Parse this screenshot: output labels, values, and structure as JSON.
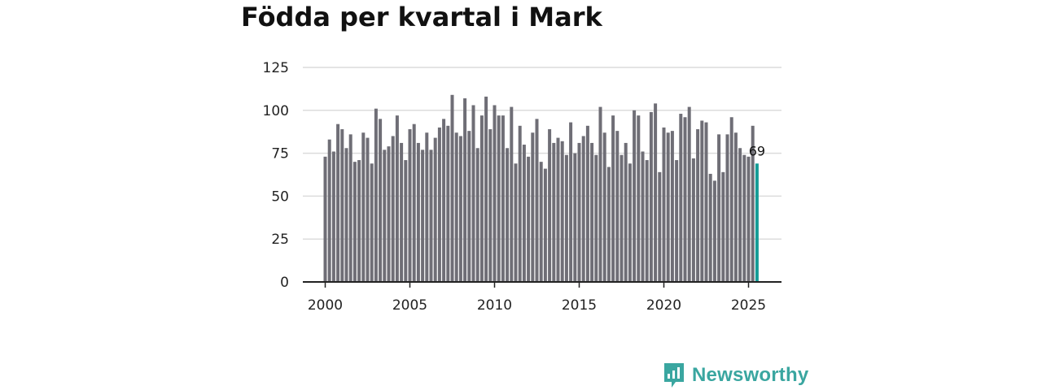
{
  "colors": {
    "bar": "#6f6e76",
    "highlight": "#149c96",
    "grid": "#dcdcdc",
    "axis": "#222222",
    "brand": "#3aa6a0"
  },
  "brand": {
    "name": "Newsworthy",
    "icon": "newsworthy-logo-icon"
  },
  "chart_data": {
    "type": "bar",
    "title": "Födda per kvartal i Mark",
    "xlabel": "",
    "ylabel": "",
    "yticks": [
      0,
      25,
      50,
      75,
      100,
      125
    ],
    "ylim": [
      0,
      125
    ],
    "xticks": [
      "2000",
      "2005",
      "2010",
      "2015",
      "2020",
      "2025"
    ],
    "grid": true,
    "categories": [
      "2000 K1",
      "2000 K2",
      "2000 K3",
      "2000 K4",
      "2001 K1",
      "2001 K2",
      "2001 K3",
      "2001 K4",
      "2002 K1",
      "2002 K2",
      "2002 K3",
      "2002 K4",
      "2003 K1",
      "2003 K2",
      "2003 K3",
      "2003 K4",
      "2004 K1",
      "2004 K2",
      "2004 K3",
      "2004 K4",
      "2005 K1",
      "2005 K2",
      "2005 K3",
      "2005 K4",
      "2006 K1",
      "2006 K2",
      "2006 K3",
      "2006 K4",
      "2007 K1",
      "2007 K2",
      "2007 K3",
      "2007 K4",
      "2008 K1",
      "2008 K2",
      "2008 K3",
      "2008 K4",
      "2009 K1",
      "2009 K2",
      "2009 K3",
      "2009 K4",
      "2010 K1",
      "2010 K2",
      "2010 K3",
      "2010 K4",
      "2011 K1",
      "2011 K2",
      "2011 K3",
      "2011 K4",
      "2012 K1",
      "2012 K2",
      "2012 K3",
      "2012 K4",
      "2013 K1",
      "2013 K2",
      "2013 K3",
      "2013 K4",
      "2014 K1",
      "2014 K2",
      "2014 K3",
      "2014 K4",
      "2015 K1",
      "2015 K2",
      "2015 K3",
      "2015 K4",
      "2016 K1",
      "2016 K2",
      "2016 K3",
      "2016 K4",
      "2017 K1",
      "2017 K2",
      "2017 K3",
      "2017 K4",
      "2018 K1",
      "2018 K2",
      "2018 K3",
      "2018 K4",
      "2019 K1",
      "2019 K2",
      "2019 K3",
      "2019 K4",
      "2020 K1",
      "2020 K2",
      "2020 K3",
      "2020 K4",
      "2021 K1",
      "2021 K2",
      "2021 K3",
      "2021 K4",
      "2022 K1",
      "2022 K2",
      "2022 K3",
      "2022 K4",
      "2023 K1",
      "2023 K2",
      "2023 K3",
      "2023 K4",
      "2024 K1",
      "2024 K2",
      "2024 K3",
      "2024 K4",
      "2025 K1",
      "2025 K2",
      "2025 K3"
    ],
    "values": [
      73,
      83,
      76,
      92,
      89,
      78,
      86,
      70,
      71,
      87,
      84,
      69,
      101,
      95,
      77,
      79,
      85,
      97,
      81,
      71,
      89,
      92,
      81,
      77,
      87,
      77,
      84,
      90,
      95,
      91,
      109,
      87,
      85,
      107,
      88,
      103,
      78,
      97,
      108,
      89,
      103,
      97,
      97,
      78,
      102,
      69,
      91,
      80,
      73,
      87,
      95,
      70,
      66,
      89,
      81,
      84,
      82,
      74,
      93,
      75,
      81,
      85,
      91,
      81,
      74,
      102,
      87,
      67,
      97,
      88,
      74,
      81,
      69,
      100,
      97,
      76,
      71,
      99,
      104,
      64,
      90,
      87,
      88,
      71,
      98,
      96,
      102,
      72,
      89,
      94,
      93,
      63,
      59,
      86,
      64,
      86,
      96,
      87,
      78,
      74,
      73,
      91,
      69
    ],
    "highlight_index": 102,
    "data_labels": [
      {
        "index": 102,
        "text": "69"
      }
    ]
  }
}
